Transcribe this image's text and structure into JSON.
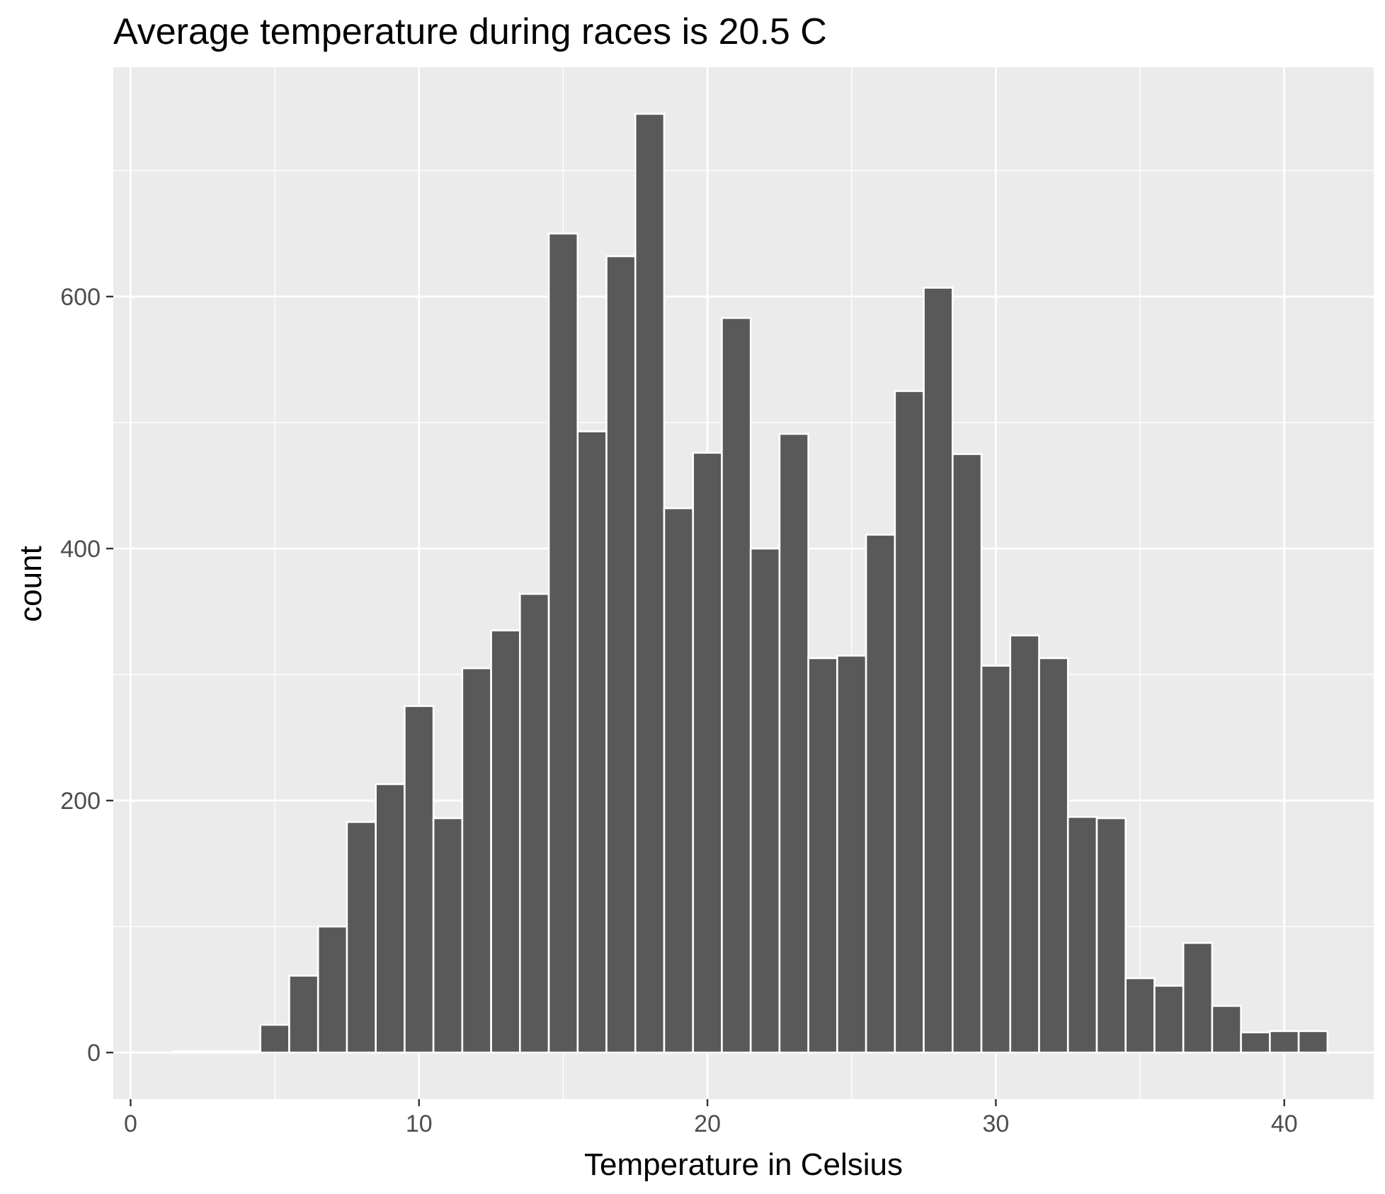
{
  "chart_data": {
    "type": "bar",
    "title": "Average temperature during races is 20.5 C",
    "xlabel": "Temperature in Celsius",
    "ylabel": "count",
    "xlim": [
      -0.6,
      43.1
    ],
    "ylim": [
      -37,
      782
    ],
    "x_ticks": [
      0,
      10,
      20,
      30,
      40
    ],
    "x_tick_labels": [
      "0",
      "10",
      "20",
      "30",
      "40"
    ],
    "y_ticks": [
      0,
      200,
      400,
      600
    ],
    "y_tick_labels": [
      "0",
      "200",
      "400",
      "600"
    ],
    "y_minor_ticks": [
      100,
      300,
      500,
      700
    ],
    "grid": true,
    "bin_width": 1,
    "bin_centers": [
      2,
      3,
      4,
      5,
      6,
      7,
      8,
      9,
      10,
      11,
      12,
      13,
      14,
      15,
      16,
      17,
      18,
      19,
      20,
      21,
      22,
      23,
      24,
      25,
      26,
      27,
      28,
      29,
      30,
      31,
      32,
      33,
      34,
      35,
      36,
      37,
      38,
      39,
      40,
      41
    ],
    "values": [
      1,
      1,
      1,
      22,
      61,
      100,
      183,
      213,
      275,
      186,
      305,
      335,
      364,
      650,
      493,
      632,
      745,
      432,
      476,
      583,
      400,
      491,
      313,
      315,
      411,
      525,
      607,
      475,
      307,
      331,
      313,
      187,
      186,
      59,
      53,
      87,
      37,
      16,
      17,
      17
    ]
  },
  "colors": {
    "panel_background": "#ebebeb",
    "grid_major": "#ffffff",
    "bar_fill": "#595959",
    "bar_outline": "#ffffff",
    "tick_label": "#4d4d4d",
    "tick_mark": "#333333"
  }
}
